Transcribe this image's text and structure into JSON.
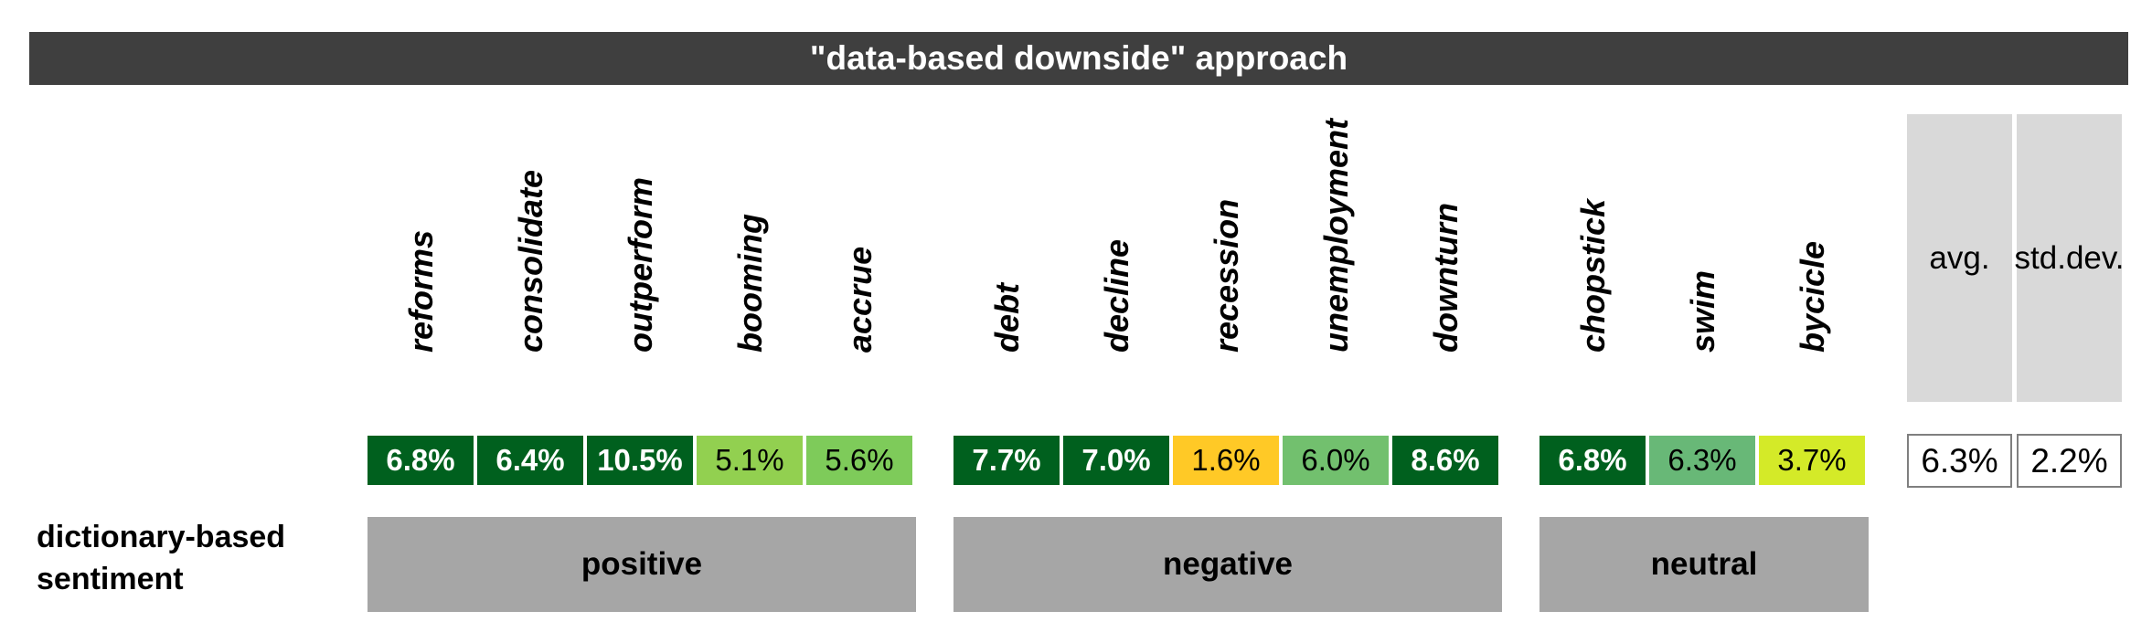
{
  "chart_data": {
    "type": "table",
    "title": "\"data-based downside\" approach",
    "row_label_line1": "dictionary-based",
    "row_label_line2": "sentiment",
    "groups": [
      {
        "name": "positive",
        "words": [
          {
            "word": "reforms",
            "value": "6.8%",
            "color": "#00601e",
            "text_color": "#ffffff",
            "bold": true
          },
          {
            "word": "consolidate",
            "value": "6.4%",
            "color": "#00601e",
            "text_color": "#ffffff",
            "bold": true
          },
          {
            "word": "outperform",
            "value": "10.5%",
            "color": "#00601e",
            "text_color": "#ffffff",
            "bold": true
          },
          {
            "word": "booming",
            "value": "5.1%",
            "color": "#92d050",
            "text_color": "#000000",
            "bold": false
          },
          {
            "word": "accrue",
            "value": "5.6%",
            "color": "#7ecb5a",
            "text_color": "#000000",
            "bold": false
          }
        ]
      },
      {
        "name": "negative",
        "words": [
          {
            "word": "debt",
            "value": "7.7%",
            "color": "#00601e",
            "text_color": "#ffffff",
            "bold": true
          },
          {
            "word": "decline",
            "value": "7.0%",
            "color": "#00601e",
            "text_color": "#ffffff",
            "bold": true
          },
          {
            "word": "recession",
            "value": "1.6%",
            "color": "#ffc926",
            "text_color": "#000000",
            "bold": false
          },
          {
            "word": "unemployment",
            "value": "6.0%",
            "color": "#72c06e",
            "text_color": "#000000",
            "bold": false
          },
          {
            "word": "downturn",
            "value": "8.6%",
            "color": "#00601e",
            "text_color": "#ffffff",
            "bold": true
          }
        ]
      },
      {
        "name": "neutral",
        "words": [
          {
            "word": "chopstick",
            "value": "6.8%",
            "color": "#00601e",
            "text_color": "#ffffff",
            "bold": true
          },
          {
            "word": "swim",
            "value": "6.3%",
            "color": "#68b877",
            "text_color": "#000000",
            "bold": false
          },
          {
            "word": "bycicle",
            "value": "3.7%",
            "color": "#d4ea28",
            "text_color": "#000000",
            "bold": false
          }
        ]
      }
    ],
    "stats": [
      {
        "label_line1": "avg.",
        "label_line2": "",
        "value": "6.3%"
      },
      {
        "label_line1": "std.",
        "label_line2": "dev.",
        "value": "2.2%"
      }
    ]
  }
}
